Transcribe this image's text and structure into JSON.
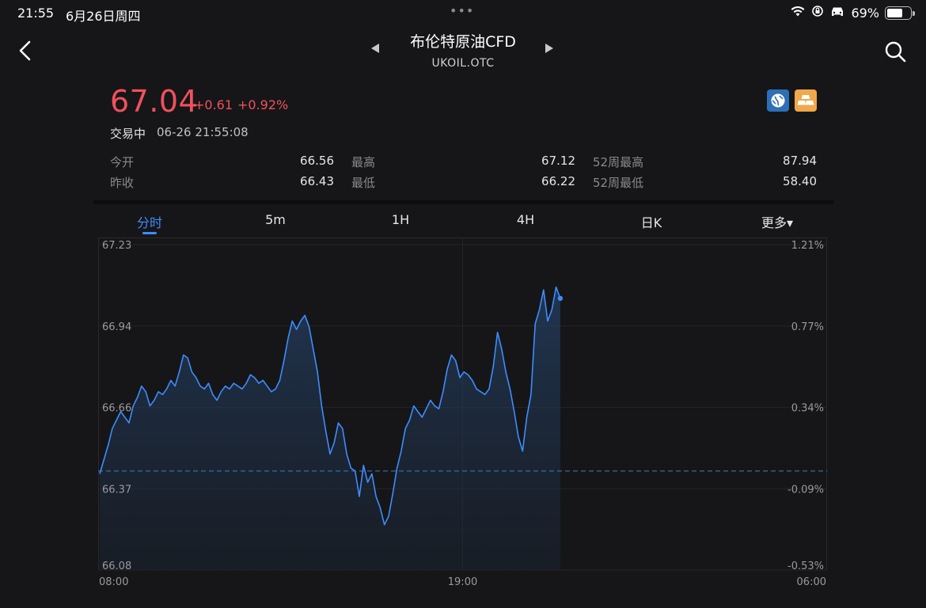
{
  "status_bar": {
    "time": "21:55",
    "date": "6月26日周四",
    "dots": "•••",
    "battery": "69%",
    "battery_level": 0.69
  },
  "nav": {
    "title": "布伦特原油CFD",
    "subtitle": "UKOIL.OTC",
    "prev_icon": "prev-arrow-icon",
    "next_icon": "next-arrow-icon"
  },
  "quote": {
    "price": "67.04",
    "change": "+0.61",
    "change_pct": "+0.92%",
    "state": "交易中",
    "timestamp": "06-26 21:55:08",
    "color_up": "#f2505d"
  },
  "stats": [
    {
      "label": "今开",
      "value": "66.56"
    },
    {
      "label": "最高",
      "value": "67.12"
    },
    {
      "label": "52周最高",
      "value": "87.94"
    },
    {
      "label": "昨收",
      "value": "66.43"
    },
    {
      "label": "最低",
      "value": "66.22"
    },
    {
      "label": "52周最低",
      "value": "58.40"
    }
  ],
  "tabs": [
    "分时",
    "5m",
    "1H",
    "4H",
    "日K",
    "更多▾"
  ],
  "active_tab": 0,
  "accent": "#3d8dff",
  "chart_data": {
    "type": "line",
    "y_ticks": [
      "67.23",
      "66.94",
      "66.66",
      "66.37",
      "66.08"
    ],
    "pct_ticks": [
      "1.21%",
      "0.77%",
      "0.34%",
      "-0.09%",
      "-0.53%"
    ],
    "x_ticks": [
      "08:00",
      "19:00",
      "06:00"
    ],
    "ylim": [
      66.08,
      67.23
    ],
    "prev_close": 66.43,
    "session_fraction_elapsed": 0.634,
    "values": [
      66.42,
      66.47,
      66.52,
      66.58,
      66.61,
      66.64,
      66.62,
      66.6,
      66.66,
      66.69,
      66.73,
      66.71,
      66.66,
      66.68,
      66.71,
      66.7,
      66.72,
      66.75,
      66.73,
      66.78,
      66.84,
      66.83,
      66.78,
      66.76,
      66.73,
      66.72,
      66.74,
      66.7,
      66.68,
      66.71,
      66.73,
      66.72,
      66.74,
      66.73,
      66.72,
      66.74,
      66.77,
      66.76,
      66.74,
      66.75,
      66.73,
      66.71,
      66.72,
      66.75,
      66.82,
      66.9,
      66.96,
      66.93,
      66.96,
      66.98,
      66.94,
      66.86,
      66.78,
      66.66,
      66.57,
      66.49,
      66.53,
      66.6,
      66.58,
      66.49,
      66.44,
      66.43,
      66.34,
      66.45,
      66.39,
      66.42,
      66.34,
      66.3,
      66.24,
      66.27,
      66.35,
      66.44,
      66.5,
      66.58,
      66.61,
      66.66,
      66.64,
      66.62,
      66.65,
      66.68,
      66.66,
      66.65,
      66.71,
      66.79,
      66.84,
      66.82,
      66.76,
      66.78,
      66.77,
      66.75,
      66.72,
      66.71,
      66.7,
      66.72,
      66.8,
      66.92,
      66.86,
      66.78,
      66.72,
      66.64,
      66.55,
      66.5,
      66.62,
      66.7,
      66.95,
      67.0,
      67.07,
      66.96,
      67.0,
      67.08,
      67.04
    ]
  }
}
